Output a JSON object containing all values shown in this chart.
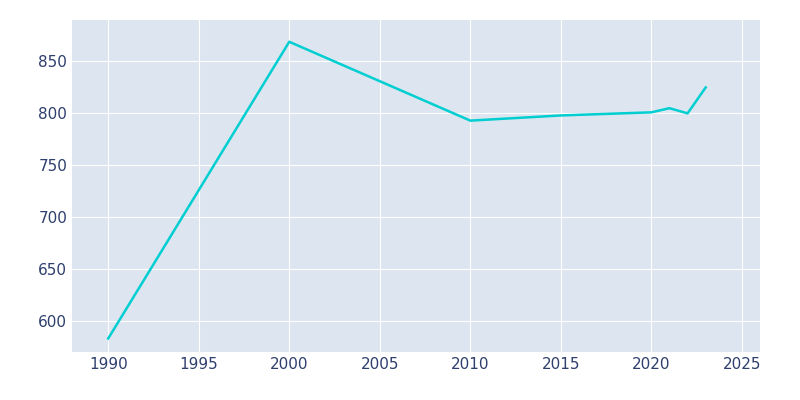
{
  "years": [
    1990,
    2000,
    2010,
    2015,
    2020,
    2021,
    2022,
    2023
  ],
  "population": [
    583,
    869,
    793,
    798,
    801,
    805,
    800,
    825
  ],
  "line_color": "#00CED1",
  "line_width": 1.8,
  "fig_bg_color": "#FFFFFF",
  "plot_bg_color": "#DDE6F0",
  "grid_color": "#FFFFFF",
  "tick_color": "#2E3F6E",
  "xlim": [
    1988,
    2026
  ],
  "ylim": [
    570,
    890
  ],
  "xticks": [
    1990,
    1995,
    2000,
    2005,
    2010,
    2015,
    2020,
    2025
  ],
  "yticks": [
    600,
    650,
    700,
    750,
    800,
    850
  ],
  "tick_fontsize": 11
}
